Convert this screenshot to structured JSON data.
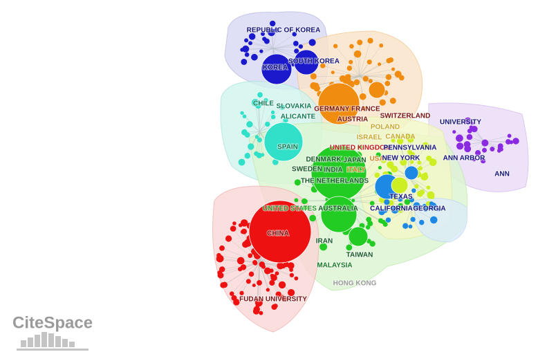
{
  "network": {
    "nodes": [
      {
        "label": "REPUBLIC OF KOREA"
      },
      {
        "label": "SOUTH KOREA"
      },
      {
        "label": "KOREA"
      },
      {
        "label": "GERMANY FRANCE"
      },
      {
        "label": "AUSTRIA"
      },
      {
        "label": "SWITZERLAND"
      },
      {
        "label": "CHILE"
      },
      {
        "label": "SLOVAKIA"
      },
      {
        "label": "ALICANTE"
      },
      {
        "label": "POLAND"
      },
      {
        "label": "ISRAEL"
      },
      {
        "label": "CANADA"
      },
      {
        "label": "UNIVERSITY"
      },
      {
        "label": "SPAIN"
      },
      {
        "label": "UNITED KINGDOM"
      },
      {
        "label": "PENNSYLVANIA"
      },
      {
        "label": "DENMARK"
      },
      {
        "label": "JAPAN"
      },
      {
        "label": "USA"
      },
      {
        "label": "NEW YORK"
      },
      {
        "label": "ANN ARBOR"
      },
      {
        "label": "ANN"
      },
      {
        "label": "SWEDEN"
      },
      {
        "label": "INDIA"
      },
      {
        "label": "ITALY"
      },
      {
        "label": "THE NETHERLANDS"
      },
      {
        "label": "TEXAS"
      },
      {
        "label": "UNITED STATES"
      },
      {
        "label": "AUSTRALIA"
      },
      {
        "label": "CALIFORNIA"
      },
      {
        "label": "GEORGIA"
      },
      {
        "label": "CHINA"
      },
      {
        "label": "IRAN"
      },
      {
        "label": "TAIWAN"
      },
      {
        "label": "MALAYSIA"
      },
      {
        "label": "HONG KONG"
      },
      {
        "label": "FUDAN UNIVERSITY"
      }
    ]
  },
  "logo": {
    "text": "CiteSpace"
  }
}
